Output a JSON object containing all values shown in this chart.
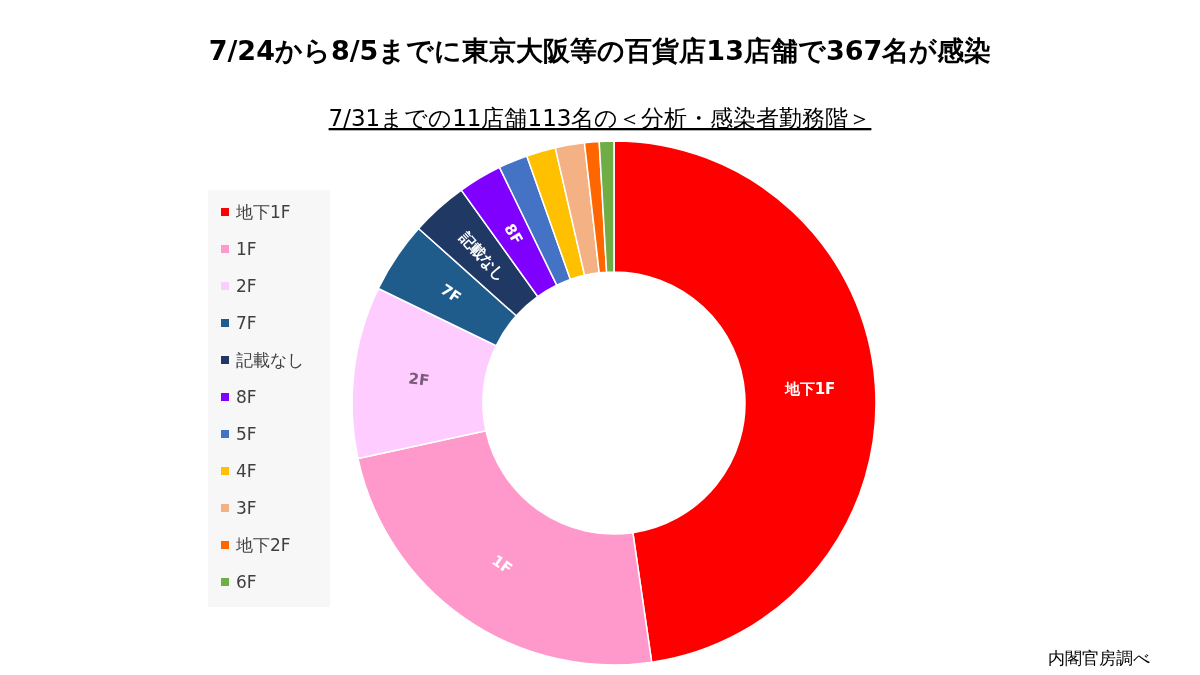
{
  "chart_data": {
    "type": "donut",
    "title": "7/24から8/5までに東京大阪等の百貨店13店舗で367名が感染",
    "subtitle": "7/31までの11店舗113名の＜分析・感染者勤務階＞",
    "categories": [
      "地下1F",
      "1F",
      "2F",
      "7F",
      "記載なし",
      "8F",
      "5F",
      "4F",
      "3F",
      "地下2F",
      "6F"
    ],
    "values": [
      47.7,
      23.9,
      10.6,
      4.4,
      3.5,
      2.7,
      1.8,
      1.8,
      1.8,
      0.9,
      0.9
    ],
    "colors": [
      "#ff0000",
      "#ff99cc",
      "#ffccff",
      "#1f5c8b",
      "#1f3864",
      "#7f00ff",
      "#4472c4",
      "#ffc000",
      "#f4b183",
      "#ff6600",
      "#70ad47"
    ],
    "legend": "left",
    "annotations": [
      "内閣官房調べ",
      {
        "text": "地下1F",
        "x": "地下1F"
      },
      {
        "text": "1F",
        "x": "1F"
      },
      {
        "text": "2F",
        "x": "2F"
      },
      {
        "text": "7F",
        "x": "7F"
      },
      {
        "text": "記載なし",
        "x": "記載なし"
      },
      {
        "text": "8F",
        "x": "8F"
      }
    ]
  }
}
